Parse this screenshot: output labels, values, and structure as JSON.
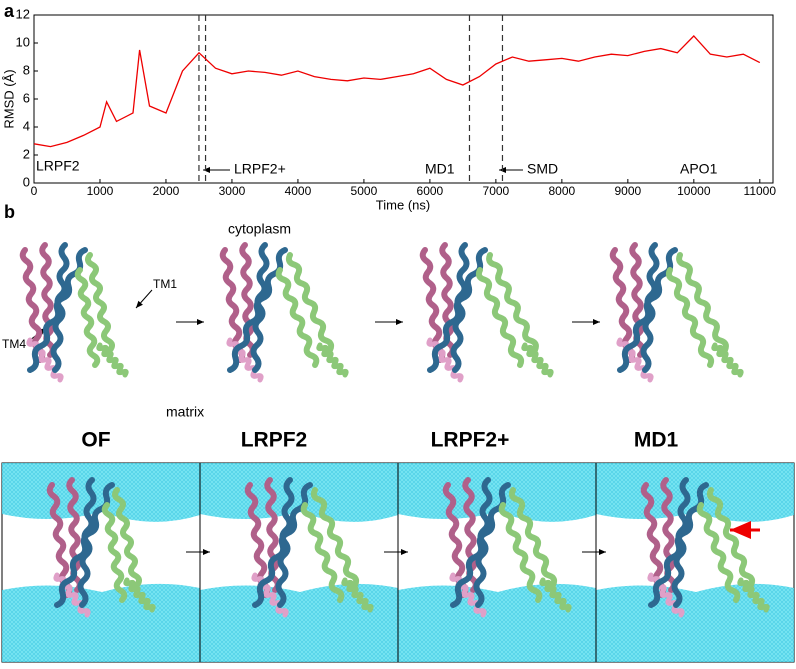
{
  "chart_data": {
    "type": "line",
    "panel_label": "a",
    "x_label": "Time (ns)",
    "y_label": "RMSD (Å)",
    "color": "#ee0000",
    "x": [
      0,
      250,
      500,
      750,
      1000,
      1100,
      1250,
      1500,
      1600,
      1750,
      2000,
      2250,
      2500,
      2750,
      3000,
      3250,
      3500,
      3750,
      4000,
      4250,
      4500,
      4750,
      5000,
      5250,
      5500,
      5750,
      6000,
      6250,
      6500,
      6750,
      7000,
      7250,
      7500,
      7750,
      8000,
      8250,
      8500,
      8750,
      9000,
      9250,
      9500,
      9750,
      10000,
      10250,
      10500,
      10750,
      11000
    ],
    "values": [
      2.8,
      2.6,
      2.9,
      3.4,
      4.0,
      5.8,
      4.4,
      5.0,
      9.5,
      5.5,
      5.0,
      8.0,
      9.3,
      8.2,
      7.8,
      8.0,
      7.9,
      7.7,
      8.0,
      7.6,
      7.4,
      7.3,
      7.5,
      7.4,
      7.6,
      7.8,
      8.2,
      7.4,
      7.0,
      7.6,
      8.5,
      9.0,
      8.7,
      8.8,
      8.9,
      8.7,
      9.0,
      9.2,
      9.1,
      9.4,
      9.6,
      9.3,
      10.5,
      9.2,
      9.0,
      9.2,
      8.6
    ],
    "xlim": [
      0,
      11200
    ],
    "ylim": [
      0,
      12
    ],
    "xticks": [
      0,
      1000,
      2000,
      3000,
      4000,
      5000,
      6000,
      7000,
      8000,
      9000,
      10000,
      11000
    ],
    "yticks": [
      0,
      2,
      4,
      6,
      8,
      10,
      12
    ],
    "event_lines": [
      2500,
      2600,
      6600,
      7100
    ],
    "annotations": [
      "LRPF2",
      "LRPF2+",
      "MD1",
      "SMD",
      "APO1"
    ]
  },
  "structures": {
    "panel_label": "b",
    "regions": [
      "cytoplasm",
      "matrix"
    ],
    "helix_labels": [
      "TM1",
      "TM4"
    ],
    "states": [
      "OF",
      "LRPF2",
      "LRPF2+",
      "MD1"
    ]
  }
}
